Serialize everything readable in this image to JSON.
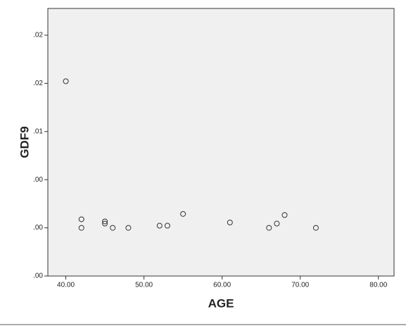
{
  "chart_data": {
    "type": "scatter",
    "x_label": "AGE",
    "y_label": "GDF9",
    "x": [
      40,
      42,
      42,
      45,
      45,
      46,
      48,
      52,
      53,
      55,
      61,
      66,
      67,
      68,
      72
    ],
    "values": [
      0.0182,
      0.0053,
      0.0045,
      0.0051,
      0.0049,
      0.0045,
      0.0045,
      0.0047,
      0.0047,
      0.0058,
      0.005,
      0.0045,
      0.0049,
      0.0057,
      0.0045
    ],
    "color": "#333333",
    "xlim": [
      37.7,
      82
    ],
    "ylim": [
      0,
      0.025
    ],
    "xticks": [
      {
        "value": 40,
        "label": "40.00"
      },
      {
        "value": 50,
        "label": "50.00"
      },
      {
        "value": 60,
        "label": "60.00"
      },
      {
        "value": 70,
        "label": "70.00"
      },
      {
        "value": 80,
        "label": "80.00"
      }
    ],
    "yticks": [
      {
        "value": 0,
        "label": ".00"
      },
      {
        "value": 0.0045,
        "label": ".00"
      },
      {
        "value": 0.009,
        "label": ".00"
      },
      {
        "value": 0.0135,
        "label": ".01"
      },
      {
        "value": 0.018,
        "label": ".02"
      },
      {
        "value": 0.0225,
        "label": ".02"
      }
    ]
  }
}
